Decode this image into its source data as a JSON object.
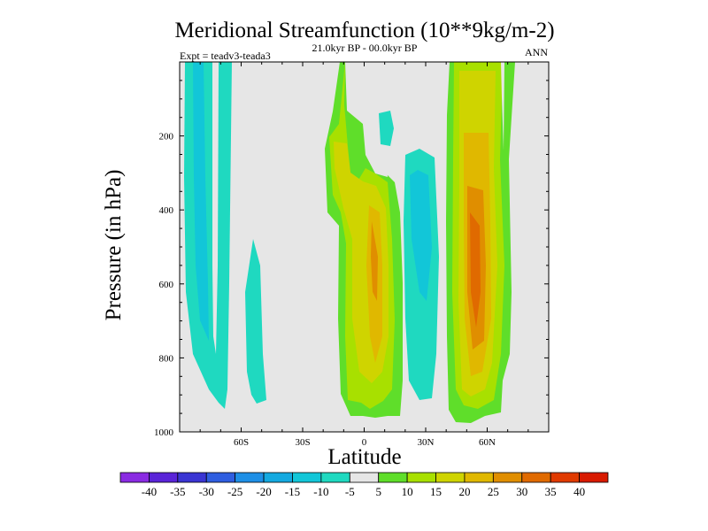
{
  "chart_data": {
    "type": "contour",
    "title": "Meridional Streamfunction (10**9kg/m-2)",
    "subtitle": "21.0kyr BP - 00.0kyr BP",
    "experiment": "Expt = teadv3-teada3",
    "season": "ANN",
    "xlabel": "Latitude",
    "ylabel": "Pressure (in hPa)",
    "xlim": [
      -90,
      90
    ],
    "ylim": [
      1000,
      0
    ],
    "x_ticks": [
      {
        "value": -60,
        "label": "60S"
      },
      {
        "value": -30,
        "label": "30S"
      },
      {
        "value": 0,
        "label": "0"
      },
      {
        "value": 30,
        "label": "30N"
      },
      {
        "value": 60,
        "label": "60N"
      }
    ],
    "y_ticks": [
      {
        "value": 200,
        "label": "200"
      },
      {
        "value": 400,
        "label": "400"
      },
      {
        "value": 600,
        "label": "600"
      },
      {
        "value": 800,
        "label": "800"
      },
      {
        "value": 1000,
        "label": "1000"
      }
    ],
    "colorbar": {
      "labels": [
        "-40",
        "-35",
        "-30",
        "-25",
        "-20",
        "-15",
        "-10",
        "-5",
        "5",
        "10",
        "15",
        "20",
        "25",
        "30",
        "35",
        "40"
      ],
      "colors": [
        "#8a2be2",
        "#5a24d8",
        "#3a35d3",
        "#2f5ee0",
        "#1e8fe6",
        "#14a9e0",
        "#12c6d8",
        "#1fd9c0",
        "#e6e6e6",
        "#5fde2a",
        "#a8e000",
        "#cfd400",
        "#e0b800",
        "#e08e00",
        "#e06a00",
        "#e03a00",
        "#d81a00"
      ]
    },
    "cells": [
      {
        "lat": -82,
        "p": 300,
        "level": "-5"
      },
      {
        "lat": -74,
        "p": 400,
        "level": "-10"
      },
      {
        "lat": -65,
        "p": 450,
        "level": "-5"
      },
      {
        "lat": -55,
        "p": 700,
        "level": "-5"
      },
      {
        "lat": -12,
        "p": 230,
        "level": "10"
      },
      {
        "lat": 2,
        "p": 450,
        "level": "20"
      },
      {
        "lat": 2,
        "p": 600,
        "level": "25"
      },
      {
        "lat": 20,
        "p": 450,
        "level": "-5"
      },
      {
        "lat": 37,
        "p": 500,
        "level": "-10"
      },
      {
        "lat": 57,
        "p": 300,
        "level": "20"
      },
      {
        "lat": 57,
        "p": 550,
        "level": "30"
      },
      {
        "lat": 55,
        "p": 650,
        "level": "35"
      }
    ]
  }
}
